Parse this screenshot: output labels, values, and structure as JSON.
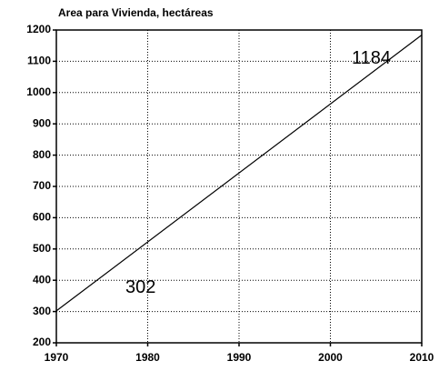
{
  "chart_data": {
    "type": "line",
    "title": "Area para Vivienda, hectáreas",
    "x": [
      1970,
      2010
    ],
    "values": [
      302,
      1184
    ],
    "color": "#000000",
    "xlim": [
      1970,
      2010
    ],
    "xticks": [
      1970,
      1980,
      1990,
      2000,
      2010
    ],
    "ylim": [
      200,
      1200
    ],
    "yticks": [
      200,
      300,
      400,
      500,
      600,
      700,
      800,
      900,
      1000,
      1100,
      1200
    ],
    "grid": true
  }
}
